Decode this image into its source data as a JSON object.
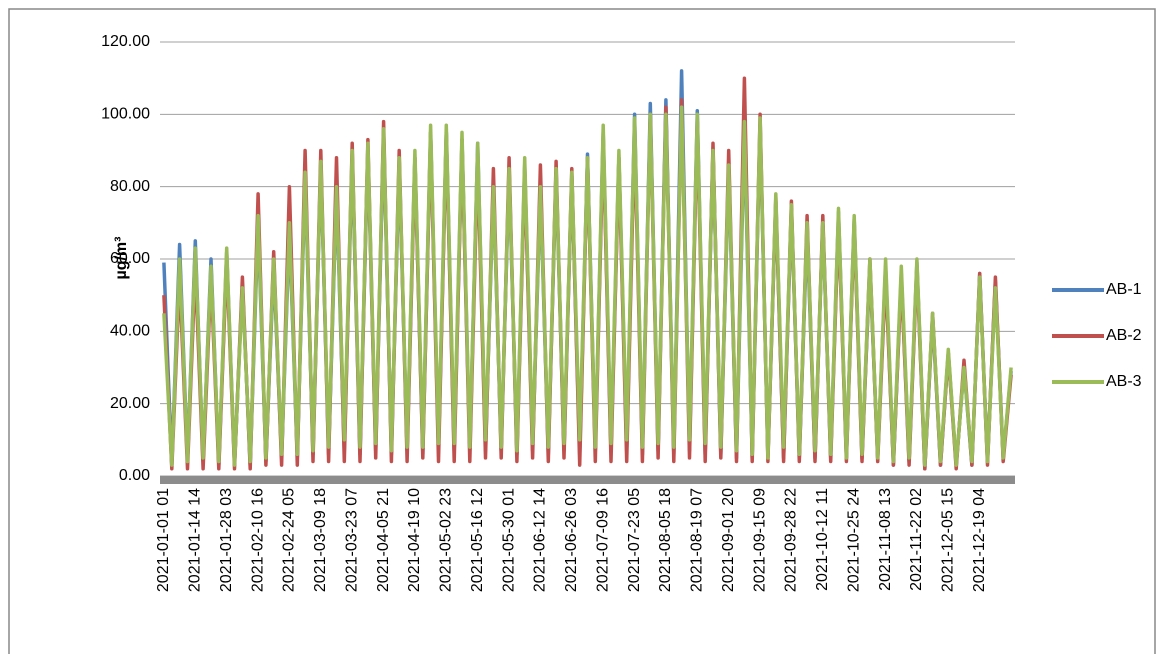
{
  "chart_data": {
    "type": "line",
    "y_label": "µg/m³",
    "categories": [
      "2021-01-01 01",
      null,
      null,
      null,
      "2021-01-14 14",
      null,
      null,
      null,
      "2021-01-28 03",
      null,
      null,
      null,
      "2021-02-10 16",
      null,
      null,
      null,
      "2021-02-24 05",
      null,
      null,
      null,
      "2021-03-09 18",
      null,
      null,
      null,
      "2021-03-23 07",
      null,
      null,
      null,
      "2021-04-05 21",
      null,
      null,
      null,
      "2021-04-19 10",
      null,
      null,
      null,
      "2021-05-02 23",
      null,
      null,
      null,
      "2021-05-16 12",
      null,
      null,
      null,
      "2021-05-30 01",
      null,
      null,
      null,
      "2021-06-12 14",
      null,
      null,
      null,
      "2021-06-26 03",
      null,
      null,
      null,
      "2021-07-09 16",
      null,
      null,
      null,
      "2021-07-23 05",
      null,
      null,
      null,
      "2021-08-05 18",
      null,
      null,
      null,
      "2021-08-19 07",
      null,
      null,
      null,
      "2021-09-01 20",
      null,
      null,
      null,
      "2021-09-15 09",
      null,
      null,
      null,
      "2021-09-28 22",
      null,
      null,
      null,
      "2021-10-12 11",
      null,
      null,
      null,
      "2021-10-25 24",
      null,
      null,
      null,
      "2021-11-08 13",
      null,
      null,
      null,
      "2021-11-22 02",
      null,
      null,
      null,
      "2021-12-05 15",
      null,
      null,
      null,
      "2021-12-19 04",
      null,
      null,
      null,
      null
    ],
    "series": [
      {
        "name": "AB-1",
        "color": "#4f81bd",
        "values": [
          59,
          3,
          64,
          4,
          65,
          4,
          60,
          3,
          62,
          3,
          53,
          3,
          70,
          4,
          58,
          5,
          68,
          5,
          83,
          6,
          86,
          6,
          79,
          7,
          88,
          6,
          90,
          7,
          94,
          6,
          86,
          7,
          88,
          6,
          95,
          7,
          95,
          7,
          93,
          7,
          92,
          7,
          80,
          7,
          84,
          6,
          86,
          7,
          79,
          6,
          84,
          7,
          83,
          6,
          89,
          7,
          95,
          7,
          88,
          7,
          100,
          6,
          103,
          7,
          104,
          6,
          112,
          7,
          101,
          6,
          90,
          6,
          85,
          5,
          96,
          5,
          97,
          5,
          76,
          5,
          74,
          5,
          68,
          5,
          70,
          5,
          73,
          5,
          71,
          5,
          58,
          5,
          58,
          3,
          56,
          4,
          59,
          2,
          44,
          3,
          34,
          3,
          30,
          3,
          56,
          4,
          54,
          5,
          29
        ]
      },
      {
        "name": "AB-2",
        "color": "#c0504d",
        "values": [
          50,
          2,
          55,
          2,
          58,
          2,
          55,
          2,
          60,
          2,
          55,
          2,
          78,
          3,
          62,
          3,
          80,
          3,
          90,
          4,
          90,
          4,
          88,
          4,
          92,
          4,
          93,
          5,
          98,
          4,
          90,
          4,
          88,
          5,
          95,
          4,
          95,
          4,
          93,
          4,
          88,
          5,
          85,
          5,
          88,
          4,
          85,
          5,
          86,
          4,
          87,
          5,
          85,
          3,
          88,
          4,
          94,
          4,
          88,
          4,
          95,
          4,
          100,
          5,
          102,
          4,
          104,
          5,
          98,
          4,
          92,
          5,
          90,
          4,
          110,
          4,
          100,
          4,
          77,
          4,
          76,
          4,
          72,
          4,
          72,
          4,
          71,
          4,
          70,
          4,
          60,
          4,
          56,
          3,
          55,
          3,
          58,
          2,
          45,
          3,
          34,
          2,
          32,
          3,
          56,
          3,
          55,
          4,
          28
        ]
      },
      {
        "name": "AB-3",
        "color": "#9bbb59",
        "values": [
          45,
          3,
          60,
          4,
          63,
          5,
          58,
          4,
          63,
          3,
          52,
          4,
          72,
          5,
          60,
          6,
          70,
          6,
          84,
          7,
          87,
          8,
          80,
          10,
          90,
          8,
          92,
          9,
          96,
          7,
          88,
          8,
          90,
          8,
          97,
          9,
          97,
          9,
          95,
          8,
          92,
          10,
          80,
          8,
          85,
          7,
          88,
          9,
          80,
          8,
          85,
          9,
          84,
          10,
          88,
          8,
          97,
          9,
          90,
          10,
          99,
          8,
          100,
          9,
          100,
          8,
          102,
          10,
          100,
          9,
          90,
          8,
          86,
          7,
          98,
          6,
          99,
          5,
          78,
          8,
          75,
          6,
          70,
          7,
          70,
          6,
          74,
          5,
          72,
          6,
          60,
          5,
          60,
          4,
          58,
          5,
          60,
          3,
          45,
          4,
          35,
          3,
          30,
          4,
          55,
          4,
          52,
          5,
          30
        ]
      }
    ],
    "ylim": [
      0,
      120
    ],
    "yticks": [
      {
        "value": 0,
        "label": "0.00"
      },
      {
        "value": 20,
        "label": "20.00"
      },
      {
        "value": 40,
        "label": "40.00"
      },
      {
        "value": 60,
        "label": "60.00"
      },
      {
        "value": 80,
        "label": "80.00"
      },
      {
        "value": 100,
        "label": "100.00"
      },
      {
        "value": 120,
        "label": "120.00"
      }
    ],
    "grid": true,
    "legend": "right"
  }
}
